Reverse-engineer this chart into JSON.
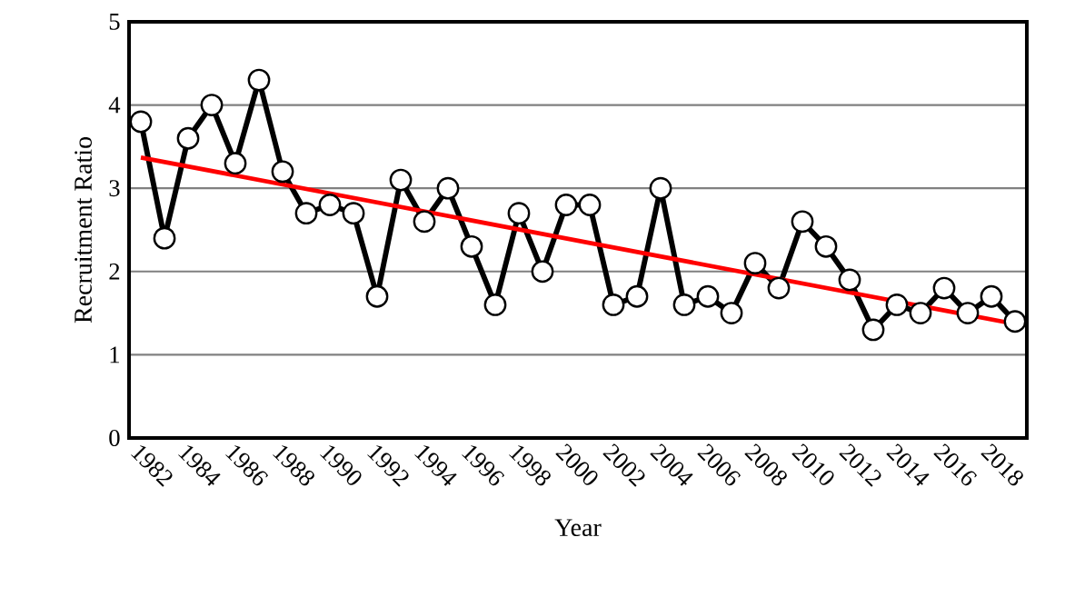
{
  "chart_data": {
    "type": "line",
    "xlabel": "Year",
    "ylabel": "Recruitment Ratio",
    "x": [
      1982,
      1983,
      1984,
      1985,
      1986,
      1987,
      1988,
      1989,
      1990,
      1991,
      1992,
      1993,
      1994,
      1995,
      1996,
      1997,
      1998,
      1999,
      2000,
      2001,
      2002,
      2003,
      2004,
      2005,
      2006,
      2007,
      2008,
      2009,
      2010,
      2011,
      2012,
      2013,
      2014,
      2015,
      2016,
      2017,
      2018,
      2019
    ],
    "xlim": [
      1981.5,
      2019.5
    ],
    "xticks": [
      1982,
      1984,
      1986,
      1988,
      1990,
      1992,
      1994,
      1996,
      1998,
      2000,
      2002,
      2004,
      2006,
      2008,
      2010,
      2012,
      2014,
      2016,
      2018
    ],
    "ylim": [
      0,
      5
    ],
    "yticks": [
      0,
      1,
      2,
      3,
      4,
      5
    ],
    "grid": "y",
    "series": [
      {
        "color": "#000000",
        "marker": "circle",
        "values": [
          3.8,
          2.4,
          3.6,
          4.0,
          3.3,
          4.3,
          3.2,
          2.7,
          2.8,
          2.7,
          1.7,
          3.1,
          2.6,
          3.0,
          2.3,
          1.6,
          2.7,
          2.0,
          2.8,
          2.8,
          1.6,
          1.7,
          3.0,
          1.6,
          1.7,
          1.5,
          2.1,
          1.8,
          2.6,
          2.3,
          1.9,
          1.3,
          1.6,
          1.5,
          1.8,
          1.5,
          1.7,
          1.4
        ]
      },
      {
        "type": "line",
        "color": "#ff0000",
        "marker": "none",
        "x": [
          1982,
          2019
        ],
        "values": [
          3.37,
          1.37
        ]
      }
    ]
  }
}
